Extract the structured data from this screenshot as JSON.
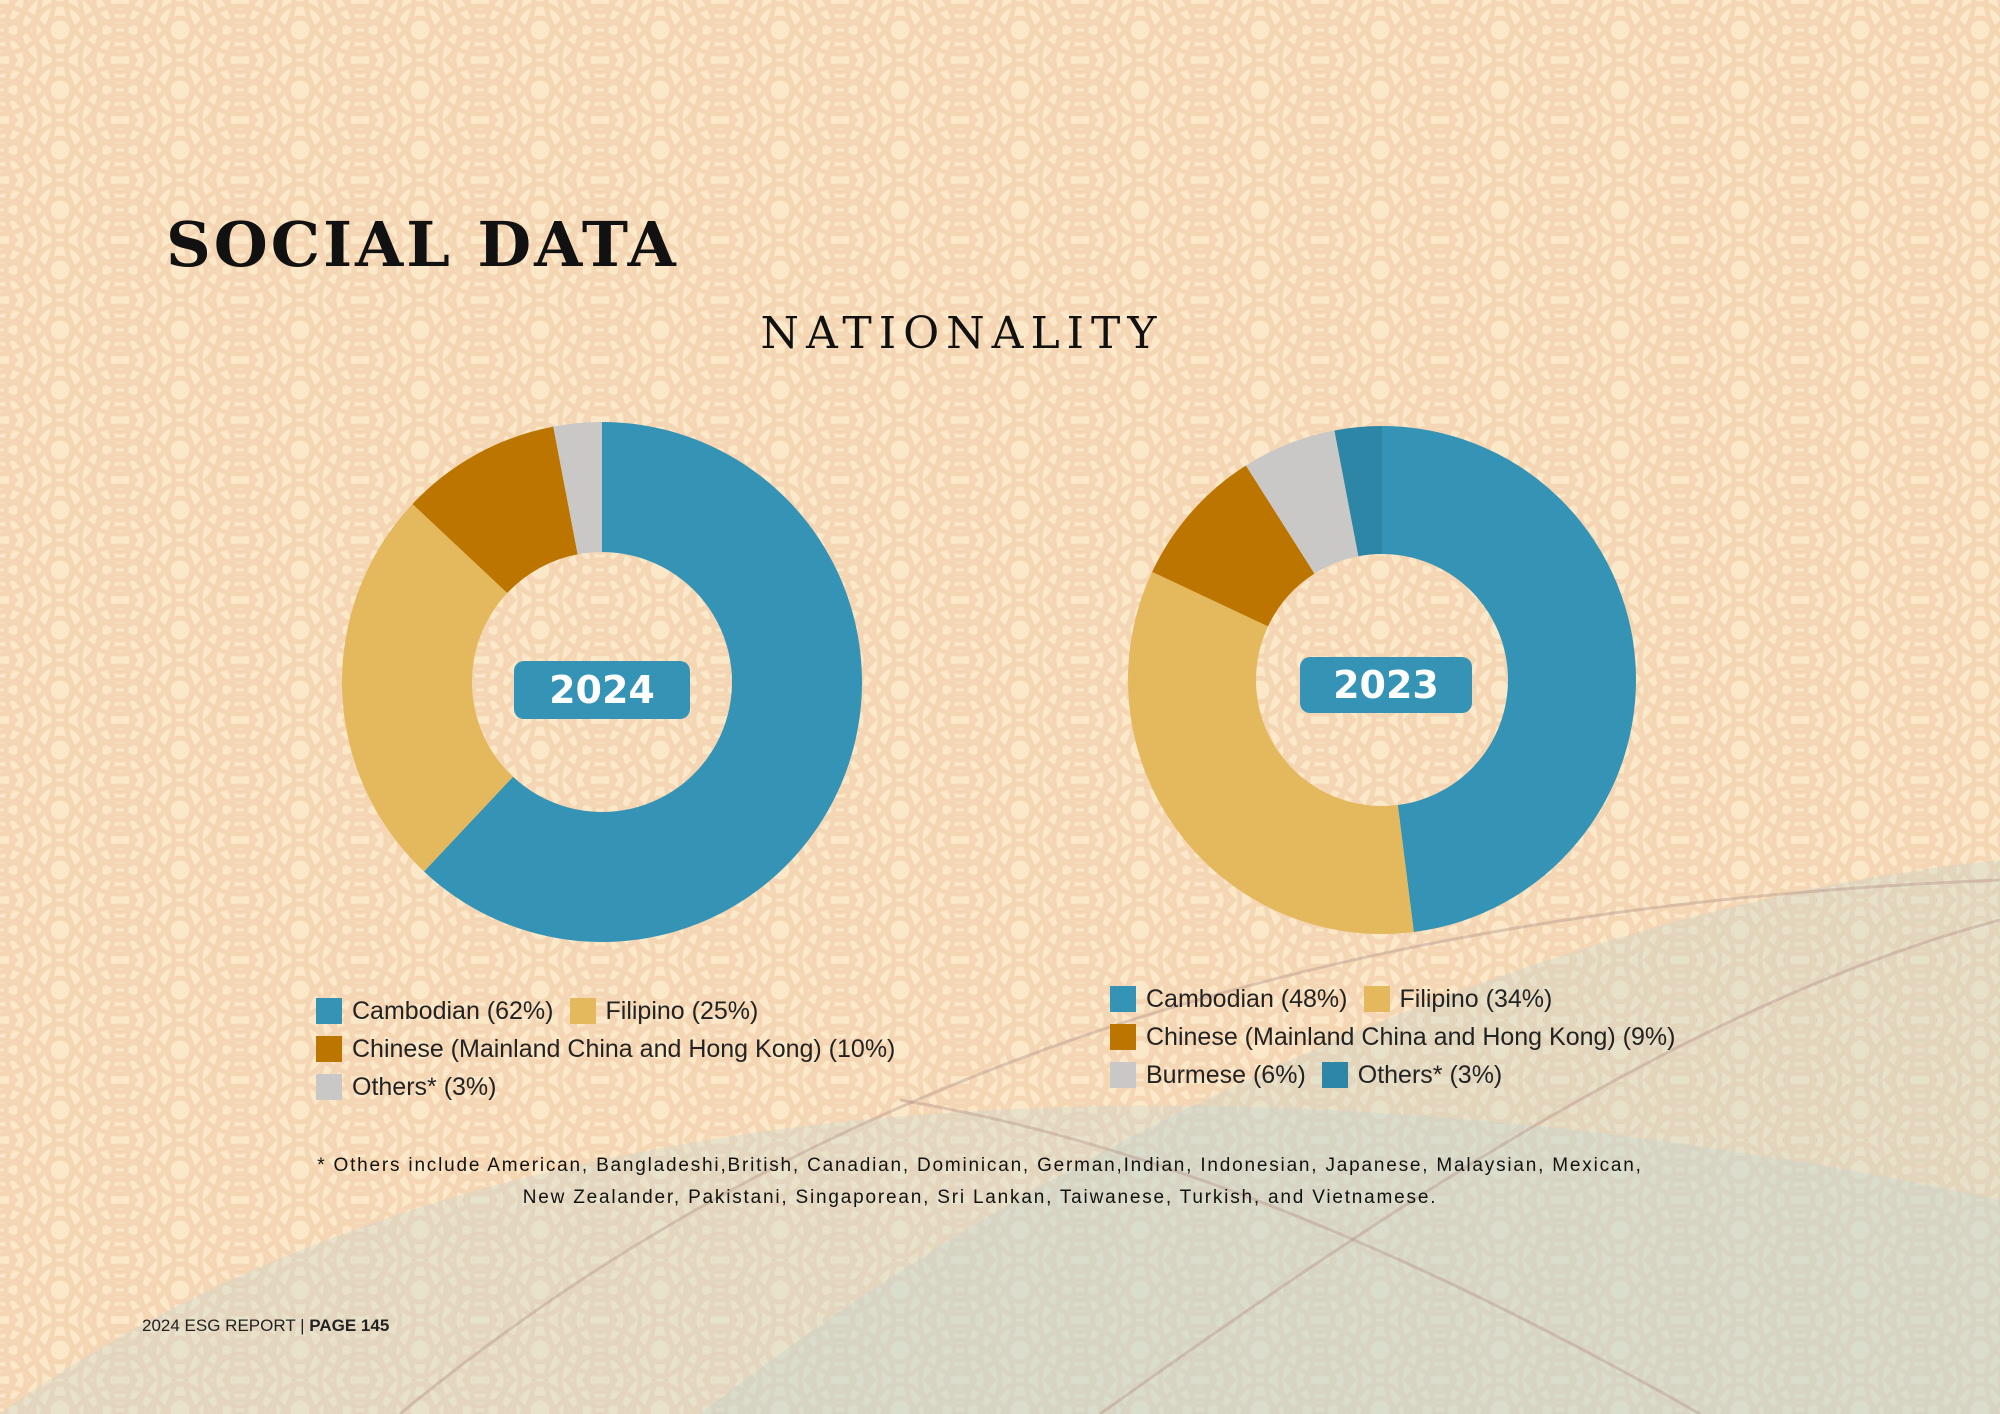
{
  "page": {
    "title": "SOCIAL DATA",
    "section_title": "NATIONALITY",
    "footnote": "* Others include American, Bangladeshi,British, Canadian, Dominican, German,Indian, Indonesian, Japanese, Malaysian, Mexican, New Zealander, Pakistani, Singaporean, Sri Lankan, Taiwanese, Turkish, and Vietnamese.",
    "footer_report": "2024 ESG REPORT | ",
    "footer_page": "PAGE 145"
  },
  "colors": {
    "background": "#fbe8c8",
    "cambodian": "#3593b6",
    "filipino": "#e4b85c",
    "chinese": "#bc7600",
    "others_2024": "#c9c8c7",
    "burmese": "#c9c8c7",
    "others_2023": "#2d86a5"
  },
  "chart_data": [
    {
      "type": "pie",
      "donut": true,
      "center_label": "2024",
      "series": [
        {
          "name": "Cambodian",
          "label": "Cambodian (62%)",
          "value": 62,
          "color": "#3593b6"
        },
        {
          "name": "Filipino",
          "label": "Filipino (25%)",
          "value": 25,
          "color": "#e4b85c"
        },
        {
          "name": "Chinese (Mainland China and Hong Kong)",
          "label": "Chinese (Mainland China and Hong Kong) (10%)",
          "value": 10,
          "color": "#bc7600"
        },
        {
          "name": "Others*",
          "label": "Others* (3%)",
          "value": 3,
          "color": "#c9c8c7"
        }
      ],
      "legend_rows": [
        [
          0,
          1
        ],
        [
          2
        ],
        [
          3
        ]
      ],
      "legend": "bottom"
    },
    {
      "type": "pie",
      "donut": true,
      "center_label": "2023",
      "series": [
        {
          "name": "Cambodian",
          "label": "Cambodian (48%)",
          "value": 48,
          "color": "#3593b6"
        },
        {
          "name": "Filipino",
          "label": "Filipino (34%)",
          "value": 34,
          "color": "#e4b85c"
        },
        {
          "name": "Chinese (Mainland China and Hong Kong)",
          "label": "Chinese (Mainland China and Hong Kong) (9%)",
          "value": 9,
          "color": "#bc7600"
        },
        {
          "name": "Burmese",
          "label": "Burmese (6%)",
          "value": 6,
          "color": "#c9c8c7"
        },
        {
          "name": "Others*",
          "label": "Others* (3%)",
          "value": 3,
          "color": "#2d86a5"
        }
      ],
      "legend_rows": [
        [
          0,
          1
        ],
        [
          2
        ],
        [
          3,
          4
        ]
      ],
      "legend": "bottom"
    }
  ]
}
